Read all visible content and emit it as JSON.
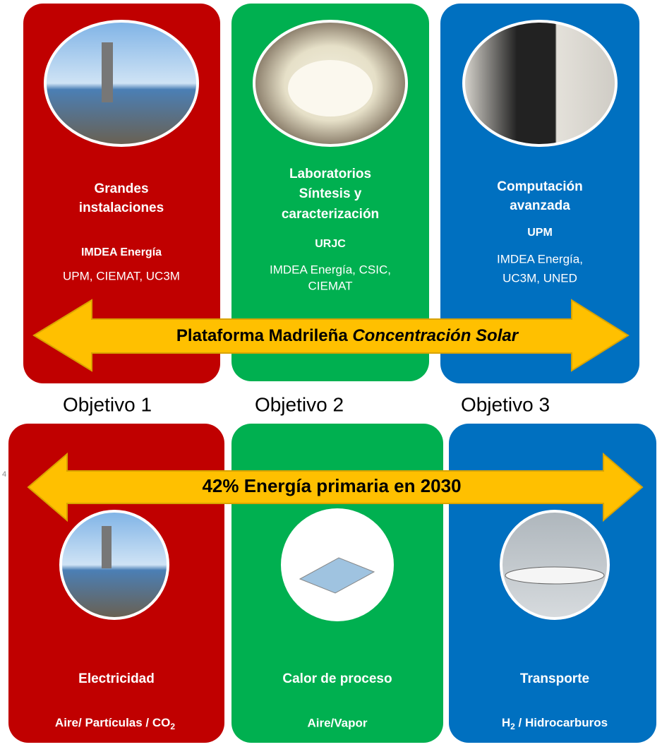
{
  "top_panels": [
    {
      "title": [
        "Grandes",
        "instalaciones"
      ],
      "lead": "IMDEA Energía",
      "partners": [
        "UPM, CIEMAT, UC3M"
      ]
    },
    {
      "title": [
        "Laboratorios",
        "Síntesis y",
        "caracterización"
      ],
      "lead": "URJC",
      "partners": [
        "IMDEA Energía, CSIC,",
        "CIEMAT"
      ]
    },
    {
      "title": [
        "Computación",
        "avanzada"
      ],
      "lead": "UPM",
      "partners": [
        "IMDEA Energía,",
        "UC3M, UNED"
      ]
    }
  ],
  "top_arrow": {
    "text": "Plataforma Madrileña ",
    "italic": "Concentración Solar"
  },
  "objectives": [
    "Objetivo 1",
    "Objetivo 2",
    "Objetivo 3"
  ],
  "bottom_arrow": {
    "text": "42% Energía primaria en 2030"
  },
  "page_number": "4",
  "bottom_panels": [
    {
      "title": "Electricidad",
      "medium": {
        "before": "Aire/ Partículas / CO",
        "sub": "2"
      }
    },
    {
      "title": "Calor de proceso",
      "medium": {
        "before": "Aire/Vapor"
      }
    },
    {
      "title": "Transporte",
      "medium": {
        "before": "H",
        "sub": "2",
        "after": " / Hidrocarburos"
      }
    }
  ]
}
